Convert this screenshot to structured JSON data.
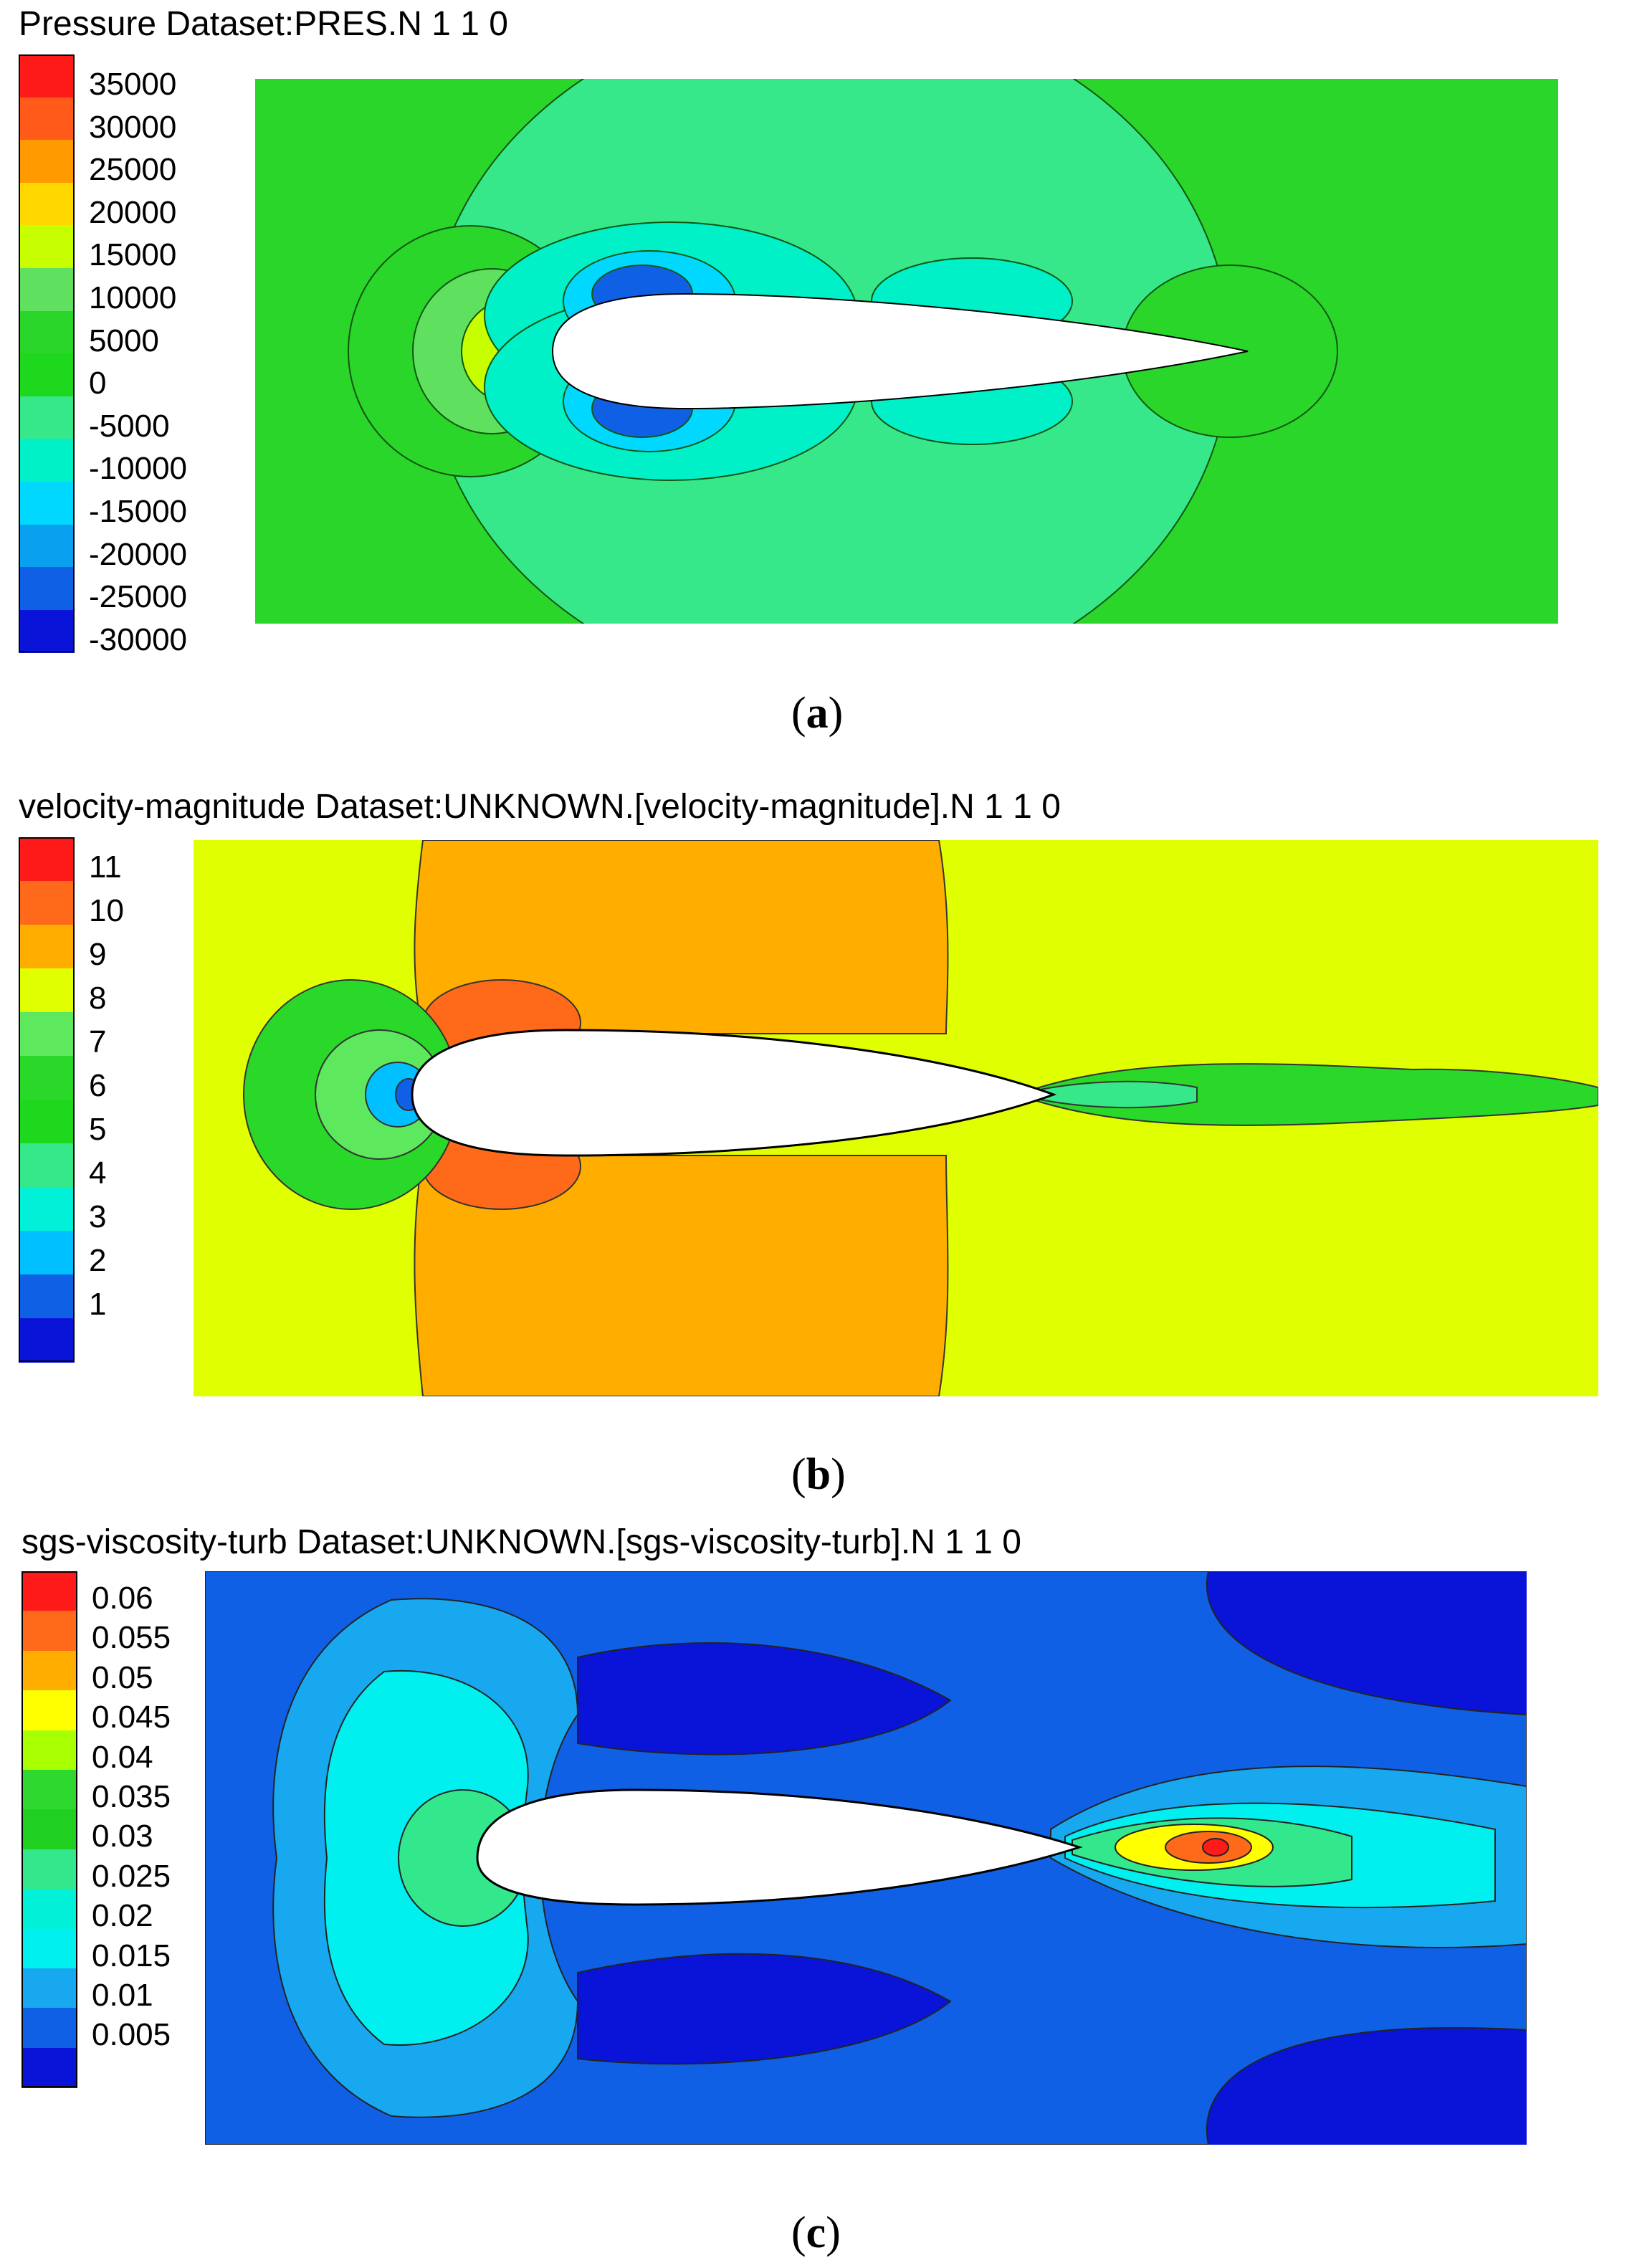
{
  "panels": [
    {
      "title": "Pressure Dataset:PRES.N 1 1 0",
      "caption_letter": "a",
      "legend": {
        "labels": [
          "35000",
          "30000",
          "25000",
          "20000",
          "15000",
          "10000",
          "5000",
          "0",
          "-5000",
          "-10000",
          "-15000",
          "-20000",
          "-25000",
          "-30000"
        ],
        "colors": [
          "#ff1a1a",
          "#ff5a1a",
          "#ff9a00",
          "#ffd800",
          "#c8ff00",
          "#5fe05f",
          "#2ad62a",
          "#1ed81e",
          "#37e88a",
          "#00f0c8",
          "#00d8ff",
          "#0aa0f0",
          "#1060e6",
          "#0a14d8"
        ]
      }
    },
    {
      "title": "velocity-magnitude Dataset:UNKNOWN.[velocity-magnitude].N 1 1 0",
      "caption_letter": "b",
      "legend": {
        "labels": [
          "11",
          "10",
          "9",
          "8",
          "7",
          "6",
          "5",
          "4",
          "3",
          "2",
          "1"
        ],
        "colors": [
          "#ff1a1a",
          "#ff6a1a",
          "#ffae00",
          "#e0ff00",
          "#5ee85e",
          "#2ad82a",
          "#1ed81e",
          "#37e88a",
          "#00f0d8",
          "#00c0ff",
          "#1060e6",
          "#0a14d8"
        ]
      }
    },
    {
      "title": "sgs-viscosity-turb Dataset:UNKNOWN.[sgs-viscosity-turb].N 1 1 0",
      "caption_letter": "c",
      "legend": {
        "labels": [
          "0.06",
          "0.055",
          "0.05",
          "0.045",
          "0.04",
          "0.035",
          "0.03",
          "0.025",
          "0.02",
          "0.015",
          "0.01",
          "0.005"
        ],
        "colors": [
          "#ff1a1a",
          "#ff6a1a",
          "#ffae00",
          "#ffff00",
          "#a8ff00",
          "#2ed82e",
          "#20d020",
          "#33e88c",
          "#00f0d8",
          "#00f0f0",
          "#18a8f0",
          "#1060e6",
          "#0a14d8"
        ]
      }
    }
  ],
  "colors": {
    "pressure_field": "#2ad62a",
    "velocity_field": "#e0ff00",
    "velocity_orange": "#ffae00",
    "viscosity_field": "#1060e6",
    "airfoil": "#ffffff"
  }
}
